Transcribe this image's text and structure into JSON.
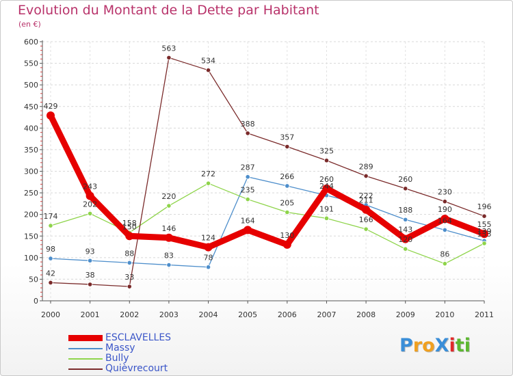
{
  "title": "Evolution du Montant de la Dette par Habitant",
  "subtitle": "(en €)",
  "logo": {
    "text": "ProXiti",
    "letters": [
      {
        "ch": "P",
        "color": "#3a8ed8"
      },
      {
        "ch": "r",
        "color": "#f0a020"
      },
      {
        "ch": "o",
        "color": "#f0a020"
      },
      {
        "ch": "X",
        "color": "#3a8ed8"
      },
      {
        "ch": "i",
        "color": "#e02a2a"
      },
      {
        "ch": "t",
        "color": "#5cb830"
      },
      {
        "ch": "i",
        "color": "#5cb830"
      }
    ]
  },
  "chart_data": {
    "type": "line",
    "title": "Evolution du Montant de la Dette par Habitant",
    "ylabel": "(en €)",
    "xlabel": "",
    "x": [
      "2000",
      "2001",
      "2002",
      "2003",
      "2004",
      "2005",
      "2006",
      "2007",
      "2008",
      "2009",
      "2010",
      "2011"
    ],
    "ylim": [
      0,
      600
    ],
    "yticks": [
      0,
      50,
      100,
      150,
      200,
      250,
      300,
      350,
      400,
      450,
      500,
      550,
      600
    ],
    "grid": true,
    "legend_position": "bottom-left",
    "series": [
      {
        "name": "ESCLAVELLES",
        "color": "#e60000",
        "bold": true,
        "values": [
          429,
          243,
          150,
          146,
          124,
          164,
          130,
          260,
          211,
          143,
          190,
          155
        ],
        "labels": [
          "429",
          "243",
          "150",
          "146",
          "124",
          "164",
          "130",
          "260",
          "211",
          "143",
          "190",
          "155"
        ]
      },
      {
        "name": "Massy",
        "color": "#4d8ecb",
        "values": [
          98,
          93,
          88,
          83,
          78,
          287,
          266,
          244,
          222,
          188,
          164,
          139
        ],
        "labels": [
          "98",
          "93",
          "88",
          "83",
          "78",
          "287",
          "266",
          "244",
          "222",
          "188",
          "164",
          "139"
        ]
      },
      {
        "name": "Bully",
        "color": "#8ed44a",
        "values": [
          174,
          202,
          158,
          220,
          272,
          235,
          205,
          191,
          166,
          120,
          86,
          133
        ],
        "labels": [
          "174",
          "202",
          "158",
          "220",
          "272",
          "235",
          "205",
          "191",
          "166",
          "120",
          "86",
          "133"
        ]
      },
      {
        "name": "Quièvrecourt",
        "color": "#7a2a2a",
        "values": [
          42,
          38,
          33,
          563,
          534,
          388,
          357,
          325,
          289,
          260,
          230,
          196
        ],
        "labels": [
          "42",
          "38",
          "33",
          "563",
          "534",
          "388",
          "357",
          "325",
          "289",
          "260",
          "230",
          "196"
        ]
      }
    ]
  }
}
